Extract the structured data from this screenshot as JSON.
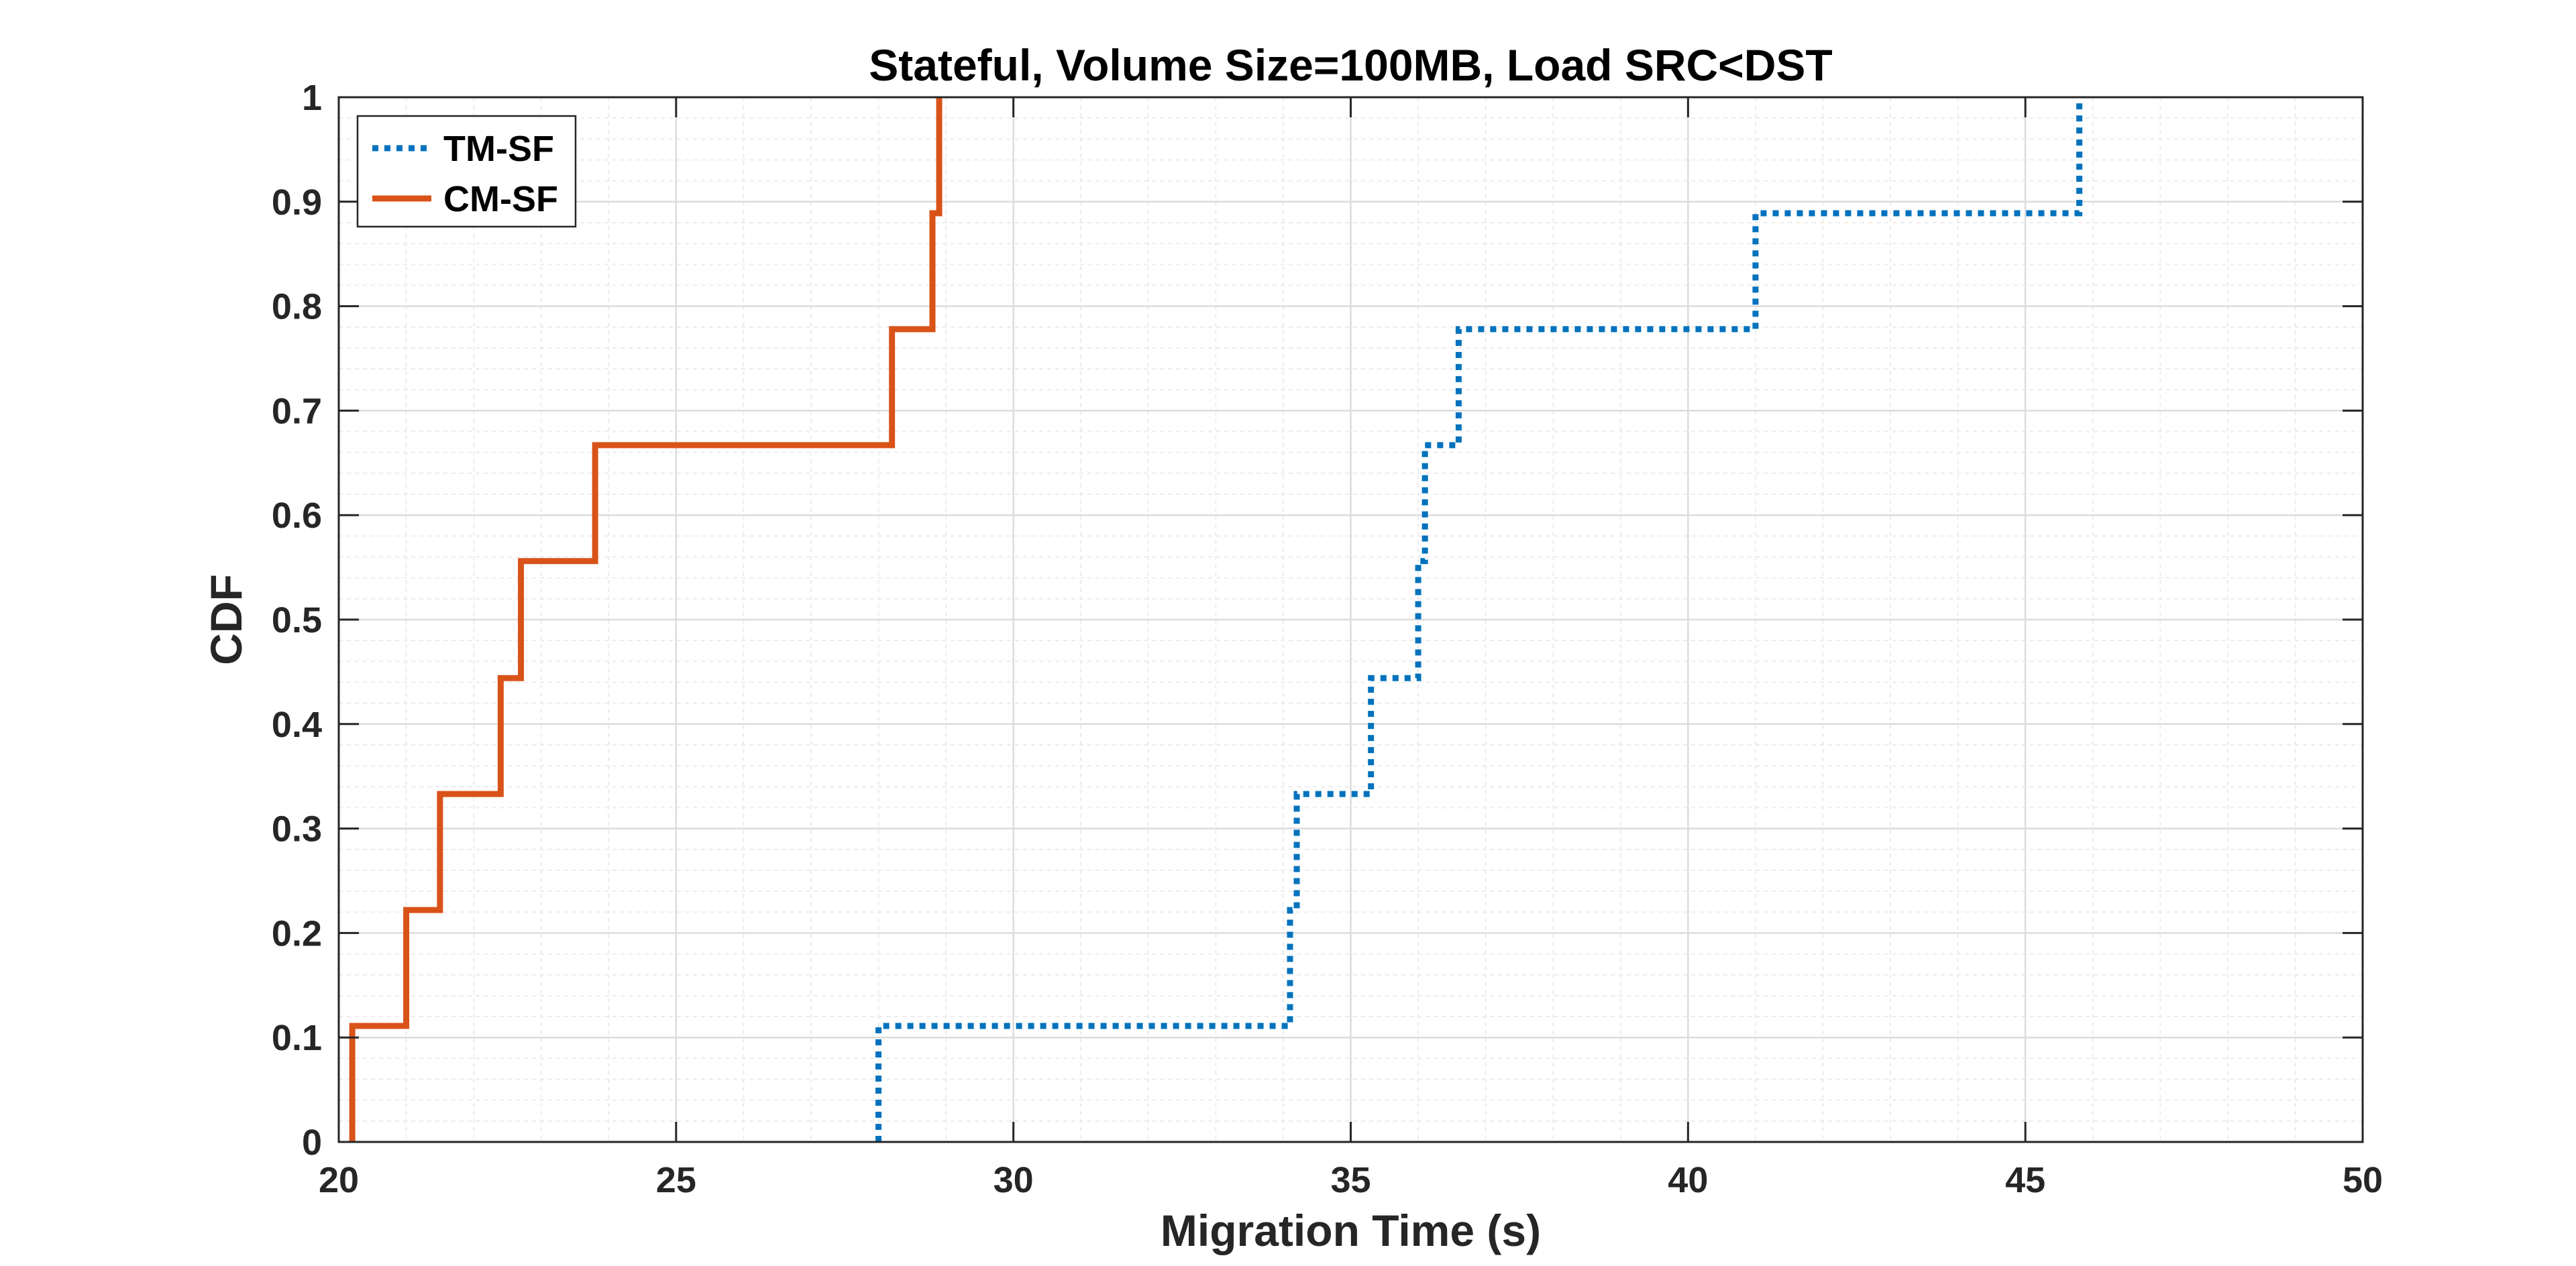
{
  "chart_data": {
    "type": "line",
    "title": "Stateful, Volume Size=100MB, Load SRC<DST",
    "xlabel": "Migration Time (s)",
    "ylabel": "CDF",
    "xlim": [
      20,
      50
    ],
    "ylim": [
      0,
      1
    ],
    "xticks": [
      20,
      25,
      30,
      35,
      40,
      45,
      50
    ],
    "yticks": [
      0,
      0.1,
      0.2,
      0.3,
      0.4,
      0.5,
      0.6,
      0.7,
      0.8,
      0.9,
      1
    ],
    "xtick_labels": [
      "20",
      "25",
      "30",
      "35",
      "40",
      "45",
      "50"
    ],
    "ytick_labels": [
      "0",
      "0.1",
      "0.2",
      "0.3",
      "0.4",
      "0.5",
      "0.6",
      "0.7",
      "0.8",
      "0.9",
      "1"
    ],
    "grid": true,
    "minor_grid": true,
    "legend_position": "top-left",
    "step_plot": true,
    "series": [
      {
        "name": "TM-SF",
        "color": "#0072BD",
        "line_style": "dotted",
        "x": [
          28.0,
          34.1,
          34.2,
          35.3,
          36.0,
          36.1,
          36.6,
          41.0,
          45.8
        ],
        "y": [
          0.111,
          0.222,
          0.333,
          0.444,
          0.556,
          0.667,
          0.778,
          0.889,
          1.0
        ]
      },
      {
        "name": "CM-SF",
        "color": "#D95319",
        "line_style": "solid",
        "x": [
          20.2,
          21.0,
          21.5,
          22.4,
          22.7,
          23.8,
          28.2,
          28.8,
          28.9
        ],
        "y": [
          0.111,
          0.222,
          0.333,
          0.444,
          0.556,
          0.667,
          0.778,
          0.889,
          1.0
        ]
      }
    ]
  }
}
